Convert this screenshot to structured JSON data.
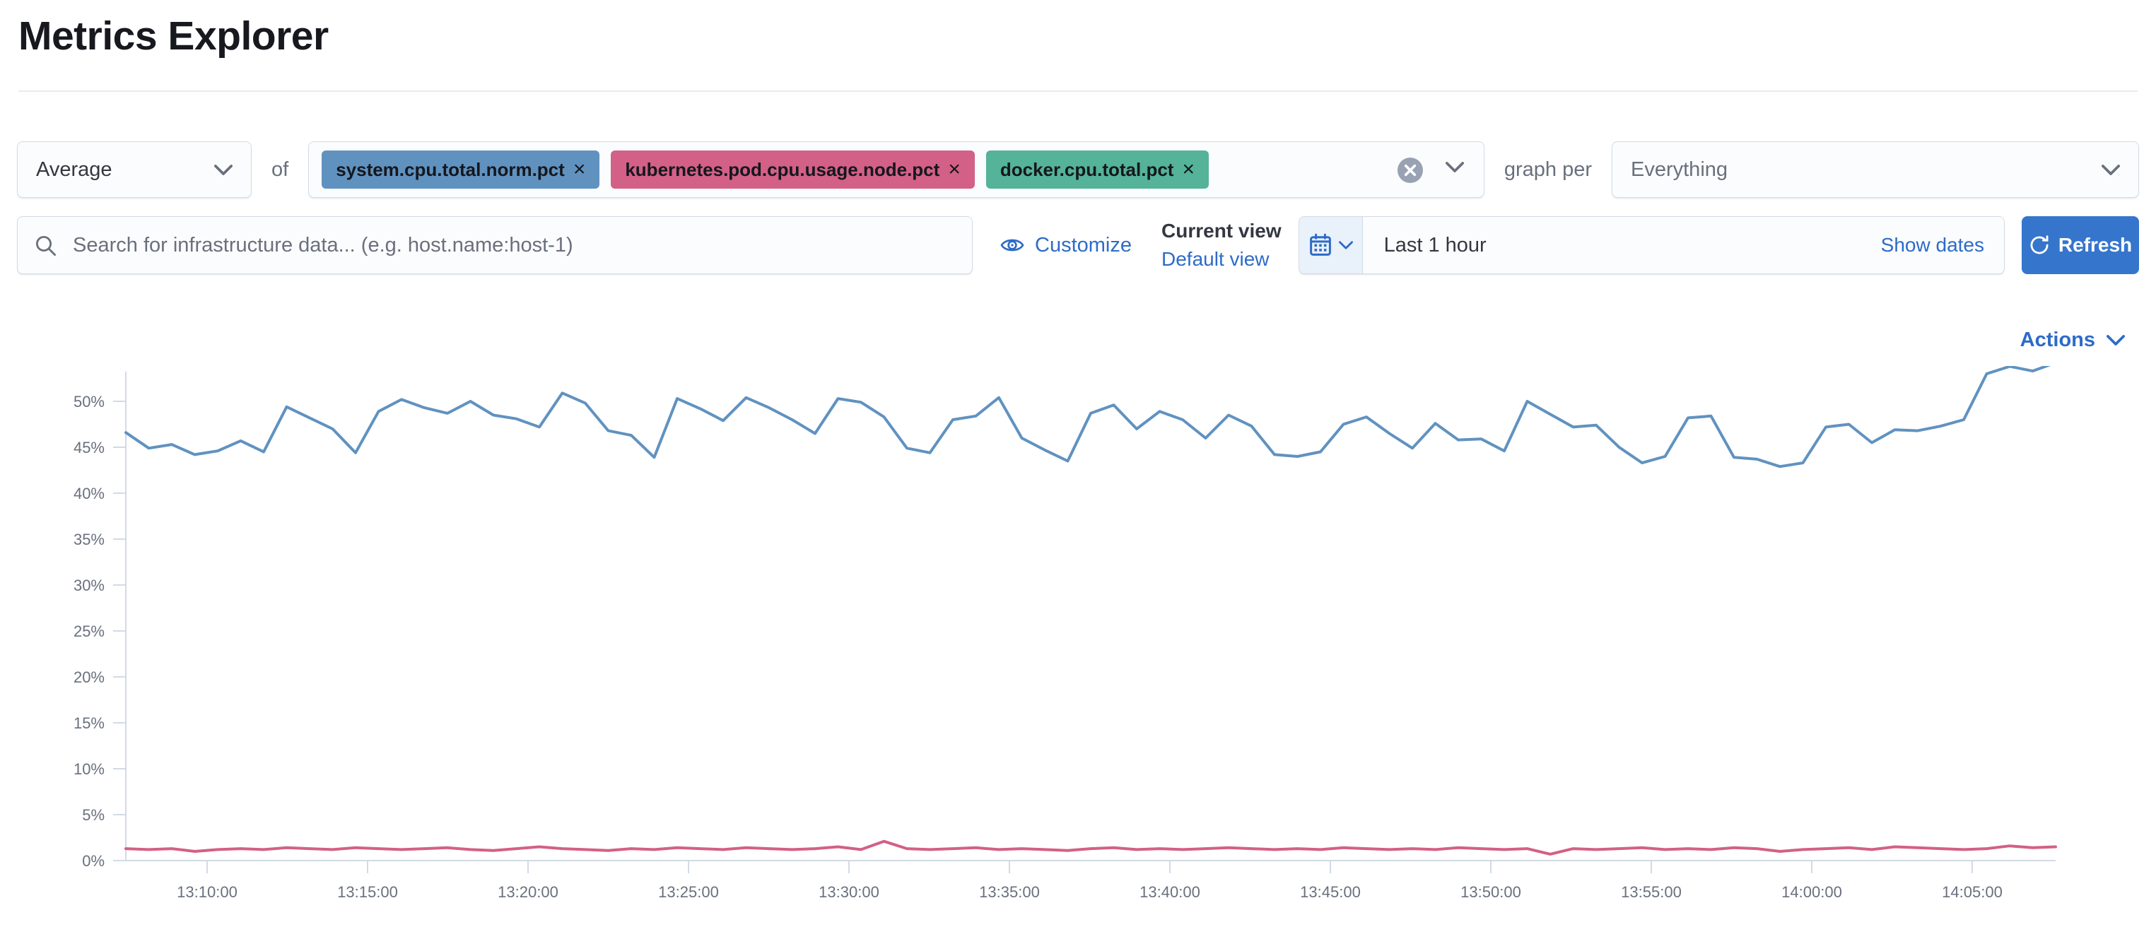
{
  "page": {
    "title": "Metrics Explorer"
  },
  "toolbar": {
    "aggregation": {
      "value": "Average"
    },
    "of_label": "of",
    "metrics": [
      {
        "label": "system.cpu.total.norm.pct",
        "color": "#6092C0"
      },
      {
        "label": "kubernetes.pod.cpu.usage.node.pct",
        "color": "#D36086"
      },
      {
        "label": "docker.cpu.total.pct",
        "color": "#54B399"
      }
    ],
    "remove_glyph": "×",
    "graph_per_label": "graph per",
    "group_by": {
      "value": "Everything"
    }
  },
  "search": {
    "placeholder": "Search for infrastructure data... (e.g. host.name:host-1)"
  },
  "view_controls": {
    "customize_label": "Customize",
    "current_view_label": "Current view",
    "view_name": "Default view"
  },
  "time_picker": {
    "value": "Last 1 hour",
    "show_dates_label": "Show dates",
    "refresh_label": "Refresh"
  },
  "chart_header": {
    "actions_label": "Actions"
  },
  "colors": {
    "link_blue": "#2d6bc8",
    "button_blue": "#3575cc",
    "axis_gray": "#d3dae6",
    "label_gray": "#69707d"
  },
  "chart_data": {
    "type": "line",
    "title": "",
    "xlabel": "",
    "ylabel": "",
    "ylim": [
      0,
      55
    ],
    "grid": false,
    "legend": "none",
    "y_tick_labels": [
      "0%",
      "5%",
      "10%",
      "15%",
      "20%",
      "25%",
      "30%",
      "35%",
      "40%",
      "45%",
      "50%"
    ],
    "x_tick_labels": [
      "13:10:00",
      "13:15:00",
      "13:20:00",
      "13:25:00",
      "13:30:00",
      "13:35:00",
      "13:40:00",
      "13:45:00",
      "13:50:00",
      "13:55:00",
      "14:00:00",
      "14:05:00"
    ],
    "unit": "%",
    "series": [
      {
        "name": "Average system.cpu.total.norm.pct",
        "color": "#6092C0",
        "values": [
          46.6,
          44.9,
          45.3,
          44.2,
          44.6,
          45.7,
          44.5,
          49.4,
          48.2,
          47.0,
          44.4,
          48.9,
          50.2,
          49.3,
          48.7,
          50.0,
          48.5,
          48.1,
          47.2,
          50.9,
          49.8,
          46.8,
          46.3,
          43.9,
          50.3,
          49.2,
          47.9,
          50.4,
          49.3,
          48.0,
          46.5,
          50.3,
          49.9,
          48.3,
          44.9,
          44.4,
          48.0,
          48.4,
          50.4,
          46.0,
          44.7,
          43.5,
          48.7,
          49.6,
          47.0,
          48.9,
          48.0,
          46.0,
          48.5,
          47.3,
          44.2,
          44.0,
          44.5,
          47.5,
          48.3,
          46.5,
          44.9,
          47.6,
          45.8,
          45.9,
          44.6,
          50.0,
          48.6,
          47.2,
          47.4,
          45.0,
          43.3,
          44.0,
          48.2,
          48.4,
          43.9,
          43.7,
          42.9,
          43.3,
          47.2,
          47.5,
          45.5,
          46.9,
          46.8,
          47.3,
          48.0,
          53.0,
          53.8,
          53.3,
          54.2
        ]
      },
      {
        "name": "Average kubernetes.pod.cpu.usage.node.pct",
        "color": "#D36086",
        "values": [
          1.3,
          1.2,
          1.3,
          1.0,
          1.2,
          1.3,
          1.2,
          1.4,
          1.3,
          1.2,
          1.4,
          1.3,
          1.2,
          1.3,
          1.4,
          1.2,
          1.1,
          1.3,
          1.5,
          1.3,
          1.2,
          1.1,
          1.3,
          1.2,
          1.4,
          1.3,
          1.2,
          1.4,
          1.3,
          1.2,
          1.3,
          1.5,
          1.2,
          2.1,
          1.3,
          1.2,
          1.3,
          1.4,
          1.2,
          1.3,
          1.2,
          1.1,
          1.3,
          1.4,
          1.2,
          1.3,
          1.2,
          1.3,
          1.4,
          1.3,
          1.2,
          1.3,
          1.2,
          1.4,
          1.3,
          1.2,
          1.3,
          1.2,
          1.4,
          1.3,
          1.2,
          1.3,
          0.7,
          1.3,
          1.2,
          1.3,
          1.4,
          1.2,
          1.3,
          1.2,
          1.4,
          1.3,
          1.0,
          1.2,
          1.3,
          1.4,
          1.2,
          1.5,
          1.4,
          1.3,
          1.2,
          1.3,
          1.6,
          1.4,
          1.5
        ]
      }
    ]
  }
}
